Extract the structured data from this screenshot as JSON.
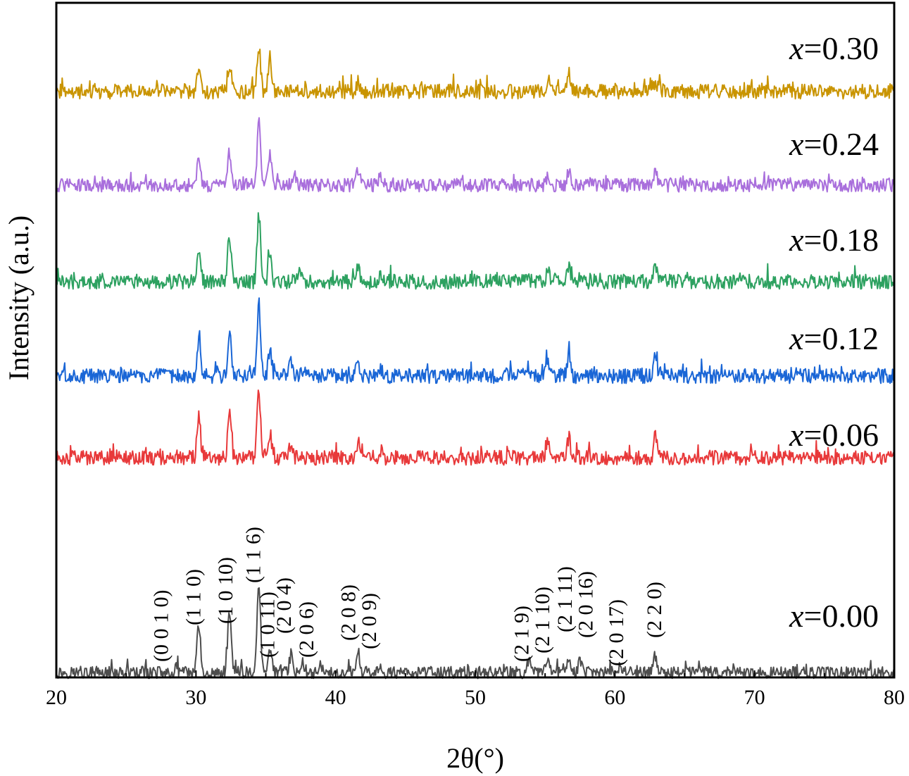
{
  "chart_data": {
    "type": "line",
    "xlabel": "2θ(°)",
    "ylabel": "Intensity (a.u.)",
    "xlim": [
      20,
      80
    ],
    "xticks": [
      20,
      30,
      40,
      50,
      60,
      70,
      80
    ],
    "xtick_labels": [
      "20",
      "30",
      "40",
      "50",
      "60",
      "70",
      "80"
    ],
    "y_ticks_shown": false,
    "grid": false,
    "legend": "inline labels at right of each trace",
    "series": [
      {
        "name": "0.00",
        "label_prefix": "x",
        "label_rest": "=0.00",
        "color": "#4d4d4d",
        "noise": 0.45,
        "peaks": [
          [
            28.6,
            0.3
          ],
          [
            30.2,
            3.6
          ],
          [
            32.4,
            4.6
          ],
          [
            34.5,
            6.6
          ],
          [
            35.3,
            1.7
          ],
          [
            36.8,
            1.2
          ],
          [
            37.6,
            0.9
          ],
          [
            38.9,
            0.6
          ],
          [
            41.6,
            1.3
          ],
          [
            43.2,
            0.6
          ],
          [
            53.9,
            0.9
          ],
          [
            55.2,
            1.0
          ],
          [
            56.7,
            1.3
          ],
          [
            57.5,
            0.8
          ],
          [
            60.4,
            0.5
          ],
          [
            62.9,
            1.3
          ]
        ]
      },
      {
        "name": "0.06",
        "label_prefix": "x",
        "label_rest": "=0.06",
        "color": "#e8393a",
        "noise": 0.55,
        "peaks": [
          [
            30.2,
            3.0
          ],
          [
            32.4,
            3.5
          ],
          [
            34.5,
            5.1
          ],
          [
            35.3,
            1.8
          ],
          [
            36.8,
            1.1
          ],
          [
            41.6,
            1.2
          ],
          [
            43.2,
            0.6
          ],
          [
            55.2,
            1.4
          ],
          [
            56.7,
            1.5
          ],
          [
            62.9,
            1.6
          ],
          [
            75.0,
            0.4
          ]
        ]
      },
      {
        "name": "0.12",
        "label_prefix": "x",
        "label_rest": "=0.12",
        "color": "#1a66d6",
        "noise": 0.55,
        "peaks": [
          [
            30.2,
            2.8
          ],
          [
            32.4,
            3.4
          ],
          [
            34.5,
            5.5
          ],
          [
            35.3,
            1.9
          ],
          [
            36.8,
            1.3
          ],
          [
            41.6,
            0.9
          ],
          [
            43.2,
            0.5
          ],
          [
            55.2,
            1.2
          ],
          [
            56.7,
            1.5
          ],
          [
            62.9,
            1.5
          ]
        ]
      },
      {
        "name": "0.18",
        "label_prefix": "x",
        "label_rest": "=0.18",
        "color": "#2da160",
        "noise": 0.55,
        "peaks": [
          [
            30.2,
            2.6
          ],
          [
            32.4,
            3.5
          ],
          [
            34.5,
            5.0
          ],
          [
            35.3,
            2.1
          ],
          [
            37.4,
            0.8
          ],
          [
            41.6,
            1.2
          ],
          [
            43.2,
            0.6
          ],
          [
            55.2,
            1.0
          ],
          [
            56.7,
            1.2
          ],
          [
            57.6,
            0.6
          ],
          [
            62.9,
            1.1
          ]
        ]
      },
      {
        "name": "0.24",
        "label_prefix": "x",
        "label_rest": "=0.24",
        "color": "#a96fdc",
        "noise": 0.5,
        "peaks": [
          [
            30.2,
            2.4
          ],
          [
            32.4,
            2.4
          ],
          [
            34.5,
            4.6
          ],
          [
            35.3,
            2.2
          ],
          [
            37.0,
            0.9
          ],
          [
            41.6,
            1.2
          ],
          [
            43.2,
            0.7
          ],
          [
            55.2,
            0.8
          ],
          [
            56.7,
            1.1
          ],
          [
            62.9,
            1.0
          ]
        ]
      },
      {
        "name": "0.30",
        "label_prefix": "x",
        "label_rest": "=0.30",
        "color": "#c99400",
        "noise": 0.55,
        "peaks": [
          [
            28.6,
            0.6
          ],
          [
            30.2,
            2.0
          ],
          [
            32.4,
            2.1
          ],
          [
            34.5,
            3.4
          ],
          [
            35.3,
            2.4
          ],
          [
            41.6,
            0.7
          ],
          [
            55.2,
            0.9
          ],
          [
            56.7,
            1.3
          ],
          [
            62.5,
            0.7
          ],
          [
            62.9,
            0.7
          ]
        ]
      }
    ],
    "annotations": [
      {
        "text": "(0 0 1 0)",
        "x": 28.0
      },
      {
        "text": "(1 1 0)",
        "x": 30.3
      },
      {
        "text": "(1 0 10)",
        "x": 32.6
      },
      {
        "text": "(1 1 6)",
        "x": 34.6
      },
      {
        "text": "(1 0 11)",
        "x": 35.6
      },
      {
        "text": "(2 0 4)",
        "x": 36.8
      },
      {
        "text": "(2 0 6)",
        "x": 38.4
      },
      {
        "text": "(2 0 8)",
        "x": 41.4
      },
      {
        "text": "(2 0 9)",
        "x": 42.9
      },
      {
        "text": "(2 1 9)",
        "x": 53.8
      },
      {
        "text": "(2 1 10)",
        "x": 55.3
      },
      {
        "text": "(2 1 11)",
        "x": 56.9
      },
      {
        "text": "(2 0 16)",
        "x": 58.4
      },
      {
        "text": "(2 0 17)",
        "x": 60.6
      },
      {
        "text": "(2 2 0)",
        "x": 63.3
      }
    ]
  }
}
